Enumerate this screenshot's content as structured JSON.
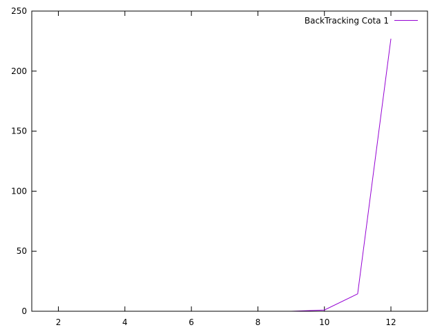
{
  "chart_data": {
    "type": "line",
    "title": "",
    "xlabel": "",
    "ylabel": "",
    "xlim": [
      1.2,
      13.1
    ],
    "ylim": [
      0,
      250
    ],
    "xticks": [
      2,
      4,
      6,
      8,
      10,
      12
    ],
    "yticks": [
      0,
      50,
      100,
      150,
      200,
      250
    ],
    "grid": false,
    "legend_position": "top-right",
    "series": [
      {
        "name": "BackTracking Cota 1",
        "color": "#9400d3",
        "x": [
          1,
          2,
          3,
          4,
          5,
          6,
          7,
          8,
          9,
          10,
          11,
          12
        ],
        "y": [
          0,
          0,
          0,
          0,
          0,
          0,
          0,
          0,
          0,
          1,
          14.5,
          227
        ]
      }
    ]
  }
}
